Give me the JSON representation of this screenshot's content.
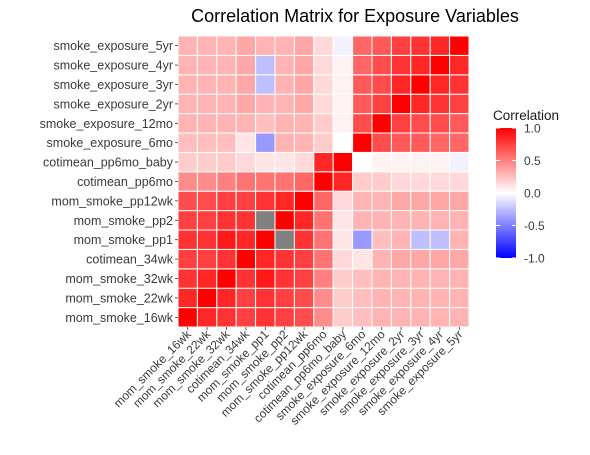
{
  "chart_data": {
    "type": "heatmap",
    "title": "Correlation Matrix for Exposure Variables",
    "variables": [
      "mom_smoke_16wk",
      "mom_smoke_22wk",
      "mom_smoke_32wk",
      "cotimean_34wk",
      "mom_smoke_pp1",
      "mom_smoke_pp2",
      "mom_smoke_pp12wk",
      "cotimean_pp6mo",
      "cotimean_pp6mo_baby",
      "smoke_exposure_6mo",
      "smoke_exposure_12mo",
      "smoke_exposure_2yr",
      "smoke_exposure_3yr",
      "smoke_exposure_4yr",
      "smoke_exposure_5yr"
    ],
    "matrix": [
      [
        1.0,
        0.85,
        0.8,
        0.75,
        0.8,
        0.75,
        0.7,
        0.45,
        0.2,
        0.25,
        0.3,
        0.3,
        0.3,
        0.3,
        0.3
      ],
      [
        0.85,
        1.0,
        0.85,
        0.75,
        0.8,
        0.75,
        0.7,
        0.45,
        0.2,
        0.25,
        0.3,
        0.3,
        0.3,
        0.3,
        0.3
      ],
      [
        0.8,
        0.85,
        1.0,
        0.8,
        0.9,
        0.8,
        0.75,
        0.5,
        0.2,
        0.25,
        0.3,
        0.3,
        0.3,
        0.3,
        0.3
      ],
      [
        0.75,
        0.75,
        0.8,
        1.0,
        0.85,
        0.8,
        0.75,
        0.55,
        0.15,
        0.1,
        0.3,
        0.35,
        0.35,
        0.35,
        0.35
      ],
      [
        0.8,
        0.8,
        0.9,
        0.85,
        1.0,
        null,
        0.8,
        0.55,
        0.1,
        -0.4,
        0.25,
        0.3,
        -0.25,
        -0.25,
        0.3
      ],
      [
        0.75,
        0.75,
        0.8,
        0.8,
        null,
        1.0,
        0.85,
        0.55,
        0.1,
        0.3,
        0.3,
        0.3,
        0.3,
        0.3,
        0.3
      ],
      [
        0.7,
        0.7,
        0.75,
        0.75,
        0.8,
        0.85,
        1.0,
        0.6,
        0.15,
        0.3,
        0.3,
        0.35,
        0.35,
        0.35,
        0.35
      ],
      [
        0.45,
        0.45,
        0.5,
        0.55,
        0.55,
        0.55,
        0.6,
        1.0,
        0.85,
        0.2,
        0.2,
        0.15,
        0.15,
        0.15,
        0.15
      ],
      [
        0.2,
        0.2,
        0.2,
        0.15,
        0.1,
        0.1,
        0.15,
        0.85,
        1.0,
        0.0,
        0.05,
        0.05,
        0.05,
        0.05,
        -0.05
      ],
      [
        0.25,
        0.25,
        0.25,
        0.1,
        -0.4,
        0.3,
        0.3,
        0.2,
        0.0,
        1.0,
        0.7,
        0.65,
        0.65,
        0.6,
        0.6
      ],
      [
        0.3,
        0.3,
        0.3,
        0.3,
        0.25,
        0.3,
        0.3,
        0.2,
        0.05,
        0.7,
        1.0,
        0.75,
        0.7,
        0.7,
        0.65
      ],
      [
        0.3,
        0.3,
        0.3,
        0.35,
        0.3,
        0.3,
        0.35,
        0.15,
        0.05,
        0.65,
        0.75,
        1.0,
        0.85,
        0.8,
        0.75
      ],
      [
        0.3,
        0.3,
        0.3,
        0.35,
        -0.25,
        0.3,
        0.35,
        0.15,
        0.05,
        0.65,
        0.7,
        0.85,
        1.0,
        0.85,
        0.8
      ],
      [
        0.3,
        0.3,
        0.3,
        0.35,
        -0.25,
        0.3,
        0.35,
        0.15,
        0.05,
        0.6,
        0.7,
        0.8,
        0.85,
        1.0,
        0.85
      ],
      [
        0.3,
        0.3,
        0.3,
        0.35,
        0.3,
        0.3,
        0.35,
        0.15,
        -0.05,
        0.6,
        0.65,
        0.75,
        0.8,
        0.85,
        1.0
      ]
    ],
    "missing_color": "#808080",
    "color_scale": {
      "low": "#0000ff",
      "mid": "#ffffff",
      "high": "#ff0000",
      "domain": [
        -1,
        1
      ]
    },
    "legend": {
      "title": "Correlation",
      "placement": "right",
      "ticks": [
        {
          "value": 1,
          "label": "1.0"
        },
        {
          "value": 0.5,
          "label": "0.5"
        },
        {
          "value": 0,
          "label": "0.0"
        },
        {
          "value": -0.5,
          "label": "-0.5"
        },
        {
          "value": -1,
          "label": "-1.0"
        }
      ]
    },
    "grid": true
  }
}
